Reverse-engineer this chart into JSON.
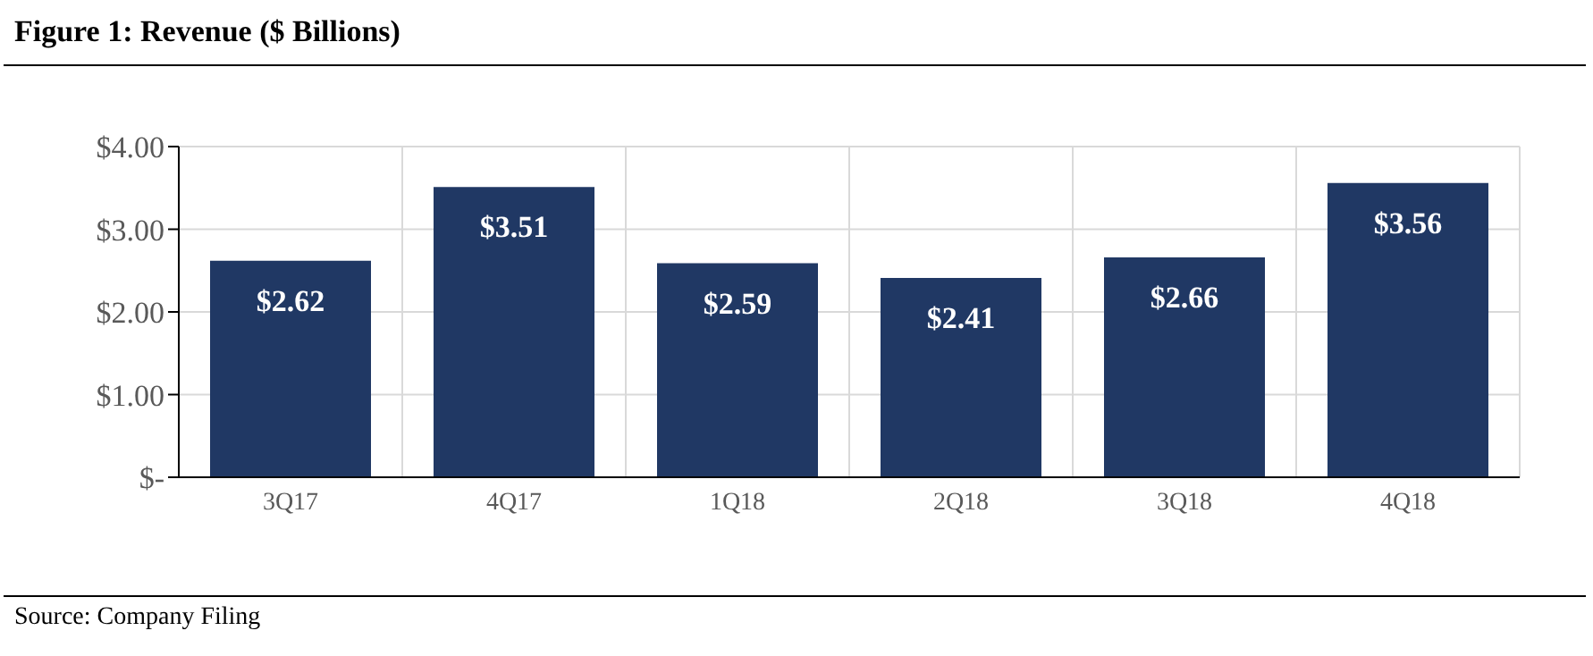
{
  "chart_data": {
    "type": "bar",
    "title": "Figure 1: Revenue ($ Billions)",
    "categories": [
      "3Q17",
      "4Q17",
      "1Q18",
      "2Q18",
      "3Q18",
      "4Q18"
    ],
    "values": [
      2.62,
      3.51,
      2.59,
      2.41,
      2.66,
      3.56
    ],
    "color": "#203864",
    "value_labels": [
      "$2.62",
      "$3.51",
      "$2.59",
      "$2.41",
      "$2.66",
      "$3.56"
    ],
    "ylim": [
      0,
      4
    ],
    "yticks": [
      {
        "value": 0,
        "label": "$-"
      },
      {
        "value": 1,
        "label": "$1.00"
      },
      {
        "value": 2,
        "label": "$2.00"
      },
      {
        "value": 3,
        "label": "$3.00"
      },
      {
        "value": 4,
        "label": "$4.00"
      }
    ],
    "grid": true,
    "annotations": [
      "Source: Company Filing"
    ]
  }
}
